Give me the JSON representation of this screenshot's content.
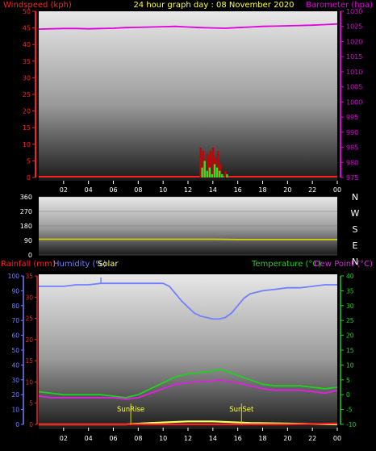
{
  "header": {
    "left": "Windspeed (kph)",
    "center": "24 hour graph day : 08 November 2020",
    "right": "Barometer (hpa)"
  },
  "legend3": {
    "rainfall": "Rainfall (mm)",
    "humidity": "Humidity (%)",
    "solar": "Solar",
    "temperature": "Temperature (°C)",
    "dewpoint": "Dew Point (°C)"
  },
  "annotations": {
    "sunrise": "SunRise",
    "sunset": "SunSet"
  },
  "colors": {
    "windspeed": "#ff2020",
    "gust": "#cc0000",
    "barometer": "#e000e0",
    "direction": "#d8d800",
    "rainfall": "#ff2020",
    "humidity": "#7080ff",
    "solar": "#ffff60",
    "temperature": "#20d020",
    "dewpoint": "#e020e0",
    "title": "#ffff40"
  },
  "chart_data": [
    {
      "type": "bar",
      "title": "24 hour graph day : 08 November 2020",
      "xlabel": "",
      "x_ticks": [
        "02",
        "04",
        "06",
        "08",
        "10",
        "12",
        "14",
        "16",
        "18",
        "20",
        "22",
        "00"
      ],
      "xlim": [
        0,
        24
      ],
      "left_axis": {
        "label": "Windspeed (kph)",
        "lim": [
          0,
          50
        ],
        "ticks": [
          0,
          5,
          10,
          15,
          20,
          25,
          30,
          35,
          40,
          45,
          50
        ]
      },
      "right_axis": {
        "label": "Barometer (hpa)",
        "lim": [
          975,
          1030
        ],
        "ticks": [
          975,
          980,
          985,
          990,
          995,
          1000,
          1005,
          1010,
          1015,
          1020,
          1025,
          1030
        ]
      },
      "series": [
        {
          "name": "Windspeed (kph)",
          "type": "bar",
          "axis": "left",
          "x": [
            13.0,
            13.2,
            13.4,
            13.6,
            13.8,
            14.0,
            14.2,
            14.4,
            14.6,
            15.0
          ],
          "values": [
            3,
            5,
            2,
            3,
            1,
            4,
            3,
            2,
            1,
            1
          ]
        },
        {
          "name": "Gust",
          "type": "bar",
          "axis": "left",
          "x": [
            13.0,
            13.2,
            13.4,
            13.6,
            13.8,
            14.0,
            14.2,
            14.4,
            14.6,
            15.0
          ],
          "values": [
            9,
            8,
            5,
            7,
            8,
            9,
            6,
            8,
            4,
            2
          ]
        },
        {
          "name": "Barometer (hpa)",
          "type": "line",
          "axis": "right",
          "x": [
            0,
            1,
            2,
            3,
            4,
            5,
            6,
            7,
            8,
            9,
            10,
            11,
            12,
            13,
            14,
            15,
            16,
            17,
            18,
            19,
            20,
            21,
            22,
            23,
            24
          ],
          "values": [
            1024.1,
            1024.2,
            1024.3,
            1024.3,
            1024.2,
            1024.3,
            1024.4,
            1024.6,
            1024.7,
            1024.8,
            1024.9,
            1025.0,
            1024.8,
            1024.6,
            1024.5,
            1024.4,
            1024.6,
            1024.8,
            1025.0,
            1025.1,
            1025.2,
            1025.3,
            1025.4,
            1025.6,
            1025.8
          ]
        }
      ]
    },
    {
      "type": "line",
      "title": "",
      "xlim": [
        0,
        24
      ],
      "left_axis": {
        "label": "",
        "lim": [
          0,
          360
        ],
        "ticks": [
          0,
          90,
          180,
          270,
          360
        ]
      },
      "right_labels": [
        "N",
        "W",
        "S",
        "E",
        "N"
      ],
      "series": [
        {
          "name": "",
          "x": [
            0,
            4,
            8,
            12,
            14,
            14.8,
            16,
            20,
            24
          ],
          "values": [
            98,
            98,
            98,
            98,
            98,
            97,
            96,
            96,
            96
          ]
        }
      ]
    },
    {
      "type": "line",
      "title": "",
      "x_ticks": [
        "02",
        "04",
        "06",
        "08",
        "10",
        "12",
        "14",
        "16",
        "18",
        "20",
        "22",
        "00"
      ],
      "xlim": [
        0,
        24
      ],
      "axes": {
        "humidity": {
          "label": "Humidity (%)",
          "lim": [
            0,
            100
          ],
          "ticks": [
            0,
            10,
            20,
            30,
            40,
            50,
            60,
            70,
            80,
            90,
            100
          ]
        },
        "rainfall": {
          "label": "Rainfall (mm)",
          "lim": [
            0,
            35
          ],
          "ticks": [
            0,
            5,
            10,
            15,
            20,
            25,
            30,
            35
          ]
        },
        "temperature": {
          "label": "Temperature (°C)",
          "lim": [
            -10,
            40
          ],
          "ticks": [
            -10,
            -5,
            0,
            5,
            10,
            15,
            20,
            25,
            30,
            35,
            40
          ]
        }
      },
      "series": [
        {
          "name": "Humidity (%)",
          "axis": "humidity",
          "x": [
            0,
            1,
            2,
            3,
            4,
            5,
            6,
            7,
            8,
            9,
            10,
            10.5,
            11,
            11.5,
            12,
            12.5,
            13,
            13.5,
            14,
            14.5,
            15,
            15.5,
            16,
            16.5,
            17,
            18,
            19,
            20,
            21,
            22,
            23,
            24
          ],
          "values": [
            93,
            93,
            93,
            94,
            94,
            95,
            95,
            95,
            95,
            95,
            95,
            93,
            88,
            83,
            79,
            75,
            73,
            72,
            71,
            71,
            72,
            75,
            80,
            85,
            88,
            90,
            91,
            92,
            92,
            93,
            94,
            94
          ]
        },
        {
          "name": "Temperature (°C)",
          "axis": "temperature",
          "x": [
            0,
            1,
            2,
            3,
            4,
            5,
            6,
            7,
            8,
            9,
            10,
            11,
            12,
            13,
            14,
            14.5,
            15,
            16,
            17,
            18,
            19,
            20,
            21,
            22,
            23,
            24
          ],
          "values": [
            1,
            0.5,
            0,
            0,
            0,
            0,
            -0.5,
            -1,
            0,
            2,
            4,
            6,
            7,
            7.5,
            8,
            8.5,
            8,
            6.5,
            5,
            3.5,
            3,
            3,
            3,
            2.5,
            2,
            2.5
          ]
        },
        {
          "name": "Dew Point (°C)",
          "axis": "temperature",
          "x": [
            0,
            1,
            2,
            3,
            4,
            5,
            6,
            7,
            8,
            9,
            10,
            11,
            12,
            13,
            14,
            14.5,
            15,
            16,
            17,
            18,
            19,
            20,
            21,
            22,
            23,
            24
          ],
          "values": [
            -0.5,
            -1,
            -1,
            -1,
            -1,
            -1,
            -1,
            -1.5,
            -1,
            0.5,
            2,
            3.5,
            4,
            4.5,
            4.5,
            5,
            4.5,
            4,
            3,
            2,
            1.5,
            1.5,
            1.5,
            1,
            0.5,
            1.5
          ]
        },
        {
          "name": "Solar",
          "axis": "humidity",
          "x": [
            0,
            7,
            9,
            12,
            14,
            17,
            24
          ],
          "values": [
            0,
            0,
            1,
            2,
            2,
            1,
            0
          ]
        },
        {
          "name": "Rainfall (mm)",
          "axis": "rainfall",
          "x": [
            0,
            12,
            20,
            24
          ],
          "values": [
            0,
            0,
            0,
            0.2
          ]
        }
      ],
      "events": [
        {
          "label": "SunRise",
          "x": 7.4
        },
        {
          "label": "SunSet",
          "x": 16.3
        }
      ]
    }
  ]
}
